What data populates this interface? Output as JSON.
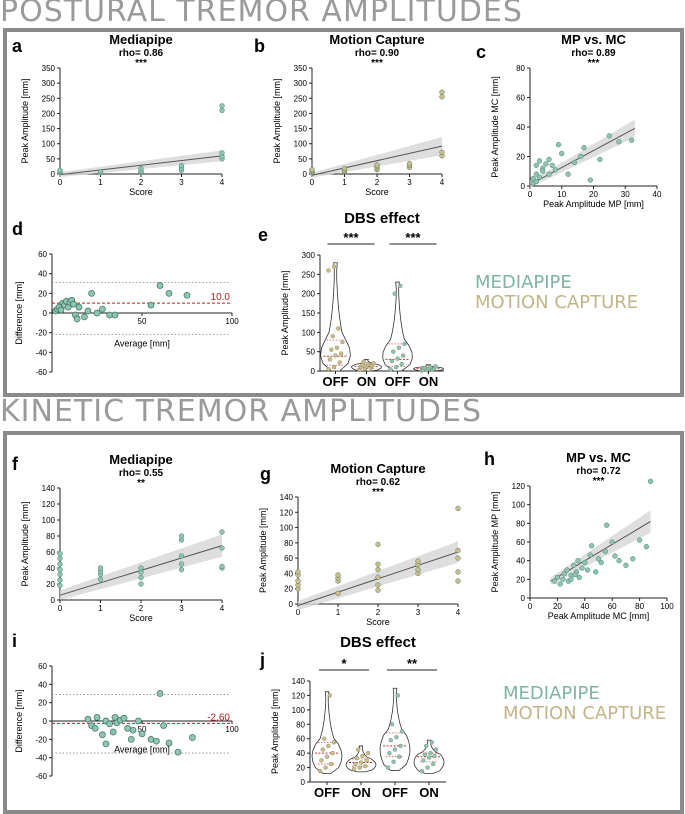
{
  "sections": [
    {
      "title": "POSTURAL TREMOR AMPLITUDES"
    },
    {
      "title": "KINETIC TREMOR AMPLITUDES"
    }
  ],
  "legend": [
    {
      "label": "MEDIAPIPE",
      "color": "#7fb3a3"
    },
    {
      "label": "MOTION CAPTURE",
      "color": "#c2b58a"
    }
  ],
  "colors": {
    "mediapipe": "#8cc5b2",
    "motion_capture": "#cbbd8a",
    "mean_line": "#b22222",
    "fit_line": "#555555",
    "ci_band": "#d6d6d6"
  },
  "chart_data": [
    {
      "panel": "a",
      "type": "scatter",
      "title": "Mediapipe",
      "stat": "rho= 0.86",
      "sig": "***",
      "xlabel": "Score",
      "ylabel": "Peak Amplitude [mm]",
      "xlim": [
        0,
        4
      ],
      "ylim": [
        0,
        350
      ],
      "xticks": [
        "0",
        "1",
        "2",
        "3",
        "4"
      ],
      "yticks": [
        "0",
        "50",
        "100",
        "150",
        "200",
        "250",
        "300",
        "350"
      ],
      "color": "mediapipe",
      "fit": [
        [
          0,
          -2
        ],
        [
          4,
          60
        ]
      ],
      "ci": [
        8,
        18
      ],
      "points": [
        [
          0,
          5
        ],
        [
          0,
          8
        ],
        [
          0,
          12
        ],
        [
          1,
          4
        ],
        [
          1,
          8
        ],
        [
          2,
          6
        ],
        [
          2,
          10
        ],
        [
          2,
          18
        ],
        [
          3,
          12
        ],
        [
          3,
          20
        ],
        [
          3,
          28
        ],
        [
          4,
          50
        ],
        [
          4,
          58
        ],
        [
          4,
          70
        ],
        [
          4,
          210
        ],
        [
          4,
          225
        ]
      ]
    },
    {
      "panel": "b",
      "type": "scatter",
      "title": "Motion Capture",
      "stat": "rho= 0.90",
      "sig": "***",
      "xlabel": "Score",
      "ylabel": "Peak Amplitude [mm]",
      "xlim": [
        0,
        4
      ],
      "ylim": [
        0,
        350
      ],
      "xticks": [
        "0",
        "1",
        "2",
        "3",
        "4"
      ],
      "yticks": [
        "0",
        "50",
        "100",
        "150",
        "200",
        "250",
        "300",
        "350"
      ],
      "color": "motion_capture",
      "fit": [
        [
          0,
          -4
        ],
        [
          4,
          92
        ]
      ],
      "ci": [
        8,
        30
      ],
      "points": [
        [
          0,
          5
        ],
        [
          0,
          8
        ],
        [
          0,
          12
        ],
        [
          0,
          15
        ],
        [
          1,
          8
        ],
        [
          1,
          12
        ],
        [
          1,
          18
        ],
        [
          2,
          14
        ],
        [
          2,
          20
        ],
        [
          2,
          26
        ],
        [
          2,
          30
        ],
        [
          3,
          22
        ],
        [
          3,
          28
        ],
        [
          3,
          34
        ],
        [
          4,
          60
        ],
        [
          4,
          72
        ],
        [
          4,
          255
        ],
        [
          4,
          270
        ]
      ]
    },
    {
      "panel": "c",
      "type": "scatter",
      "title": "MP vs. MC",
      "stat": "rho= 0.89",
      "sig": "***",
      "xlabel": "Peak Amplitude MP [mm]",
      "ylabel": "Peak Amplitude MC [mm]",
      "xlim": [
        0,
        40
      ],
      "ylim": [
        0,
        80
      ],
      "xticks": [
        "0",
        "10",
        "20",
        "30",
        "40"
      ],
      "yticks": [
        "0",
        "20",
        "40",
        "60",
        "80"
      ],
      "color": "mediapipe",
      "fit": [
        [
          0,
          1
        ],
        [
          33,
          39
        ]
      ],
      "ci": [
        2,
        6
      ],
      "points": [
        [
          1,
          2
        ],
        [
          1,
          5
        ],
        [
          2,
          3
        ],
        [
          2,
          8
        ],
        [
          3,
          6
        ],
        [
          2,
          14
        ],
        [
          3,
          17
        ],
        [
          4,
          12
        ],
        [
          5,
          15
        ],
        [
          6,
          18
        ],
        [
          4,
          10
        ],
        [
          7,
          14
        ],
        [
          9,
          28
        ],
        [
          10,
          22
        ],
        [
          12,
          8
        ],
        [
          14,
          16
        ],
        [
          16,
          20
        ],
        [
          17,
          26
        ],
        [
          19,
          4
        ],
        [
          22,
          18
        ],
        [
          25,
          34
        ],
        [
          28,
          30
        ],
        [
          32,
          31
        ],
        [
          6,
          8
        ],
        [
          8,
          11
        ]
      ]
    },
    {
      "panel": "d",
      "type": "bland-altman",
      "ylabel": "Difference [mm]",
      "xlabel": "Average [mm]",
      "xlim": [
        0,
        100
      ],
      "ylim": [
        -60,
        60
      ],
      "xticks": [
        "50",
        "100"
      ],
      "xtick_values": [
        50,
        100
      ],
      "yticks": [
        "60",
        "40",
        "20",
        "0",
        "-20",
        "-40",
        "-60"
      ],
      "mean": 10.0,
      "mean_label": "10.0",
      "loa": [
        31,
        -22
      ],
      "color": "mediapipe",
      "points": [
        [
          2,
          2
        ],
        [
          3,
          4
        ],
        [
          4,
          6
        ],
        [
          5,
          3
        ],
        [
          6,
          10
        ],
        [
          7,
          8
        ],
        [
          8,
          12
        ],
        [
          9,
          6
        ],
        [
          10,
          11
        ],
        [
          11,
          13
        ],
        [
          12,
          9
        ],
        [
          13,
          -2
        ],
        [
          14,
          -6
        ],
        [
          15,
          6
        ],
        [
          18,
          -4
        ],
        [
          20,
          2
        ],
        [
          22,
          20
        ],
        [
          25,
          0
        ],
        [
          28,
          4
        ],
        [
          32,
          -2
        ],
        [
          35,
          -2
        ],
        [
          55,
          8
        ],
        [
          60,
          28
        ],
        [
          65,
          20
        ],
        [
          75,
          18
        ]
      ]
    },
    {
      "panel": "e",
      "type": "violin",
      "title": "DBS effect",
      "ylabel": "Peak Amplitude [mm]",
      "ylim": [
        0,
        300
      ],
      "yticks": [
        "0",
        "50",
        "100",
        "150",
        "200",
        "250",
        "300"
      ],
      "categories": [
        "OFF",
        "ON",
        "OFF",
        "ON"
      ],
      "cat_colors": [
        "motion_capture",
        "motion_capture",
        "mediapipe",
        "mediapipe"
      ],
      "sig": [
        {
          "label": "***",
          "from": 0,
          "to": 1
        },
        {
          "label": "***",
          "from": 2,
          "to": 3
        }
      ],
      "median": [
        38,
        12,
        30,
        6
      ],
      "q1": [
        15,
        7,
        12,
        3
      ],
      "q3": [
        80,
        18,
        70,
        10
      ],
      "maxv": [
        280,
        30,
        230,
        16
      ],
      "minv": [
        0,
        0,
        0,
        0
      ],
      "points": [
        [
          5,
          10,
          22,
          30,
          40,
          45,
          55,
          60,
          75,
          90,
          110,
          260,
          270
        ],
        [
          3,
          6,
          8,
          10,
          12,
          14,
          16,
          18,
          20,
          24
        ],
        [
          4,
          10,
          18,
          26,
          32,
          40,
          50,
          60,
          70,
          200,
          220
        ],
        [
          1,
          2,
          3,
          4,
          5,
          6,
          8,
          10,
          12
        ]
      ]
    },
    {
      "panel": "f",
      "type": "scatter",
      "title": "Mediapipe",
      "stat": "rho= 0.55",
      "sig": "**",
      "xlabel": "Score",
      "ylabel": "Peak Amplitude [mm]",
      "xlim": [
        0,
        4
      ],
      "ylim": [
        0,
        140
      ],
      "xticks": [
        "0",
        "1",
        "2",
        "3",
        "4"
      ],
      "yticks": [
        "0",
        "20",
        "40",
        "60",
        "80",
        "100",
        "120",
        "140"
      ],
      "color": "mediapipe",
      "fit": [
        [
          0,
          6
        ],
        [
          4,
          68
        ]
      ],
      "ci": [
        6,
        14
      ],
      "points": [
        [
          0,
          18
        ],
        [
          0,
          25
        ],
        [
          0,
          32
        ],
        [
          0,
          38
        ],
        [
          0,
          45
        ],
        [
          0,
          52
        ],
        [
          0,
          58
        ],
        [
          1,
          26
        ],
        [
          1,
          32
        ],
        [
          1,
          36
        ],
        [
          1,
          40
        ],
        [
          2,
          20
        ],
        [
          2,
          28
        ],
        [
          2,
          35
        ],
        [
          2,
          40
        ],
        [
          3,
          38
        ],
        [
          3,
          45
        ],
        [
          3,
          55
        ],
        [
          3,
          75
        ],
        [
          3,
          80
        ],
        [
          4,
          40
        ],
        [
          4,
          42
        ],
        [
          4,
          65
        ],
        [
          4,
          85
        ]
      ]
    },
    {
      "panel": "g",
      "type": "scatter",
      "title": "Motion Capture",
      "stat": "rho= 0.62",
      "sig": "***",
      "xlabel": "Score",
      "ylabel": "Peak Amplitude [mm]",
      "xlim": [
        0,
        4
      ],
      "ylim": [
        0,
        140
      ],
      "xticks": [
        "0",
        "1",
        "2",
        "3",
        "4"
      ],
      "yticks": [
        "0",
        "20",
        "40",
        "60",
        "80",
        "100",
        "120",
        "140"
      ],
      "color": "motion_capture",
      "fit": [
        [
          0,
          -2
        ],
        [
          4,
          68
        ]
      ],
      "ci": [
        6,
        14
      ],
      "points": [
        [
          0,
          20
        ],
        [
          0,
          25
        ],
        [
          0,
          30
        ],
        [
          0,
          38
        ],
        [
          0,
          42
        ],
        [
          1,
          14
        ],
        [
          1,
          30
        ],
        [
          1,
          34
        ],
        [
          1,
          38
        ],
        [
          2,
          18
        ],
        [
          2,
          25
        ],
        [
          2,
          35
        ],
        [
          2,
          45
        ],
        [
          2,
          52
        ],
        [
          2,
          78
        ],
        [
          3,
          40
        ],
        [
          3,
          45
        ],
        [
          3,
          52
        ],
        [
          3,
          56
        ],
        [
          4,
          30
        ],
        [
          4,
          42
        ],
        [
          4,
          60
        ],
        [
          4,
          70
        ],
        [
          4,
          125
        ]
      ]
    },
    {
      "panel": "h",
      "type": "scatter",
      "title": "MP vs. MC",
      "stat": "rho= 0.72",
      "sig": "***",
      "xlabel": "Peak Amplitude MC [mm]",
      "ylabel": "Peak Amplitude MP [mm]",
      "xlim": [
        0,
        100
      ],
      "ylim": [
        0,
        120
      ],
      "xticks": [
        "0",
        "20",
        "40",
        "60",
        "80",
        "100"
      ],
      "yticks": [
        "0",
        "20",
        "40",
        "60",
        "80",
        "100",
        "120"
      ],
      "color": "mediapipe",
      "fit": [
        [
          15,
          18
        ],
        [
          88,
          82
        ]
      ],
      "ci": [
        4,
        12
      ],
      "points": [
        [
          18,
          18
        ],
        [
          20,
          22
        ],
        [
          22,
          15
        ],
        [
          24,
          20
        ],
        [
          25,
          26
        ],
        [
          27,
          30
        ],
        [
          28,
          18
        ],
        [
          30,
          24
        ],
        [
          32,
          35
        ],
        [
          34,
          28
        ],
        [
          35,
          40
        ],
        [
          36,
          22
        ],
        [
          38,
          32
        ],
        [
          40,
          38
        ],
        [
          42,
          30
        ],
        [
          44,
          46
        ],
        [
          45,
          56
        ],
        [
          48,
          28
        ],
        [
          50,
          42
        ],
        [
          52,
          38
        ],
        [
          55,
          50
        ],
        [
          56,
          78
        ],
        [
          60,
          60
        ],
        [
          62,
          45
        ],
        [
          65,
          40
        ],
        [
          70,
          35
        ],
        [
          75,
          42
        ],
        [
          80,
          62
        ],
        [
          85,
          55
        ],
        [
          88,
          125
        ],
        [
          30,
          20
        ],
        [
          33,
          25
        ]
      ]
    },
    {
      "panel": "i",
      "type": "bland-altman",
      "ylabel": "Difference [mm]",
      "xlabel": "Average [mm]",
      "xlim": [
        0,
        100
      ],
      "ylim": [
        -60,
        60
      ],
      "xticks": [
        "50",
        "100"
      ],
      "xtick_values": [
        50,
        100
      ],
      "yticks": [
        "60",
        "40",
        "20",
        "0",
        "-20",
        "-40",
        "-60"
      ],
      "mean": -2.6,
      "mean_label": "-2.60",
      "loa": [
        29,
        -35
      ],
      "color": "mediapipe",
      "points": [
        [
          20,
          2
        ],
        [
          22,
          -5
        ],
        [
          24,
          -8
        ],
        [
          25,
          4
        ],
        [
          28,
          -15
        ],
        [
          30,
          0
        ],
        [
          32,
          -3
        ],
        [
          34,
          -12
        ],
        [
          35,
          4
        ],
        [
          36,
          -2
        ],
        [
          38,
          1
        ],
        [
          40,
          3
        ],
        [
          42,
          -8
        ],
        [
          44,
          -20
        ],
        [
          45,
          -10
        ],
        [
          48,
          0
        ],
        [
          50,
          -14
        ],
        [
          55,
          -20
        ],
        [
          58,
          -22
        ],
        [
          60,
          30
        ],
        [
          62,
          -5
        ],
        [
          65,
          -24
        ],
        [
          70,
          -34
        ],
        [
          78,
          -18
        ],
        [
          30,
          -25
        ]
      ]
    },
    {
      "panel": "j",
      "type": "violin",
      "title": "DBS effect",
      "ylabel": "Peak Amplitude [mm]",
      "ylim": [
        0,
        140
      ],
      "yticks": [
        "0",
        "20",
        "40",
        "60",
        "80",
        "100",
        "120",
        "140"
      ],
      "categories": [
        "OFF",
        "ON",
        "OFF",
        "ON"
      ],
      "cat_colors": [
        "motion_capture",
        "motion_capture",
        "mediapipe",
        "mediapipe"
      ],
      "sig": [
        {
          "label": "*",
          "from": 0,
          "to": 1
        },
        {
          "label": "**",
          "from": 2,
          "to": 3
        }
      ],
      "median": [
        40,
        27,
        50,
        35
      ],
      "q1": [
        25,
        22,
        35,
        28
      ],
      "q3": [
        55,
        32,
        68,
        40
      ],
      "maxv": [
        125,
        50,
        130,
        58
      ],
      "minv": [
        12,
        14,
        16,
        12
      ],
      "points": [
        [
          15,
          20,
          25,
          30,
          35,
          40,
          45,
          50,
          55,
          60,
          120
        ],
        [
          18,
          20,
          22,
          25,
          27,
          30,
          33,
          36,
          40,
          45
        ],
        [
          20,
          28,
          35,
          40,
          45,
          50,
          58,
          62,
          70,
          80,
          120
        ],
        [
          15,
          20,
          25,
          30,
          34,
          36,
          38,
          40,
          45,
          50,
          55
        ]
      ]
    }
  ]
}
